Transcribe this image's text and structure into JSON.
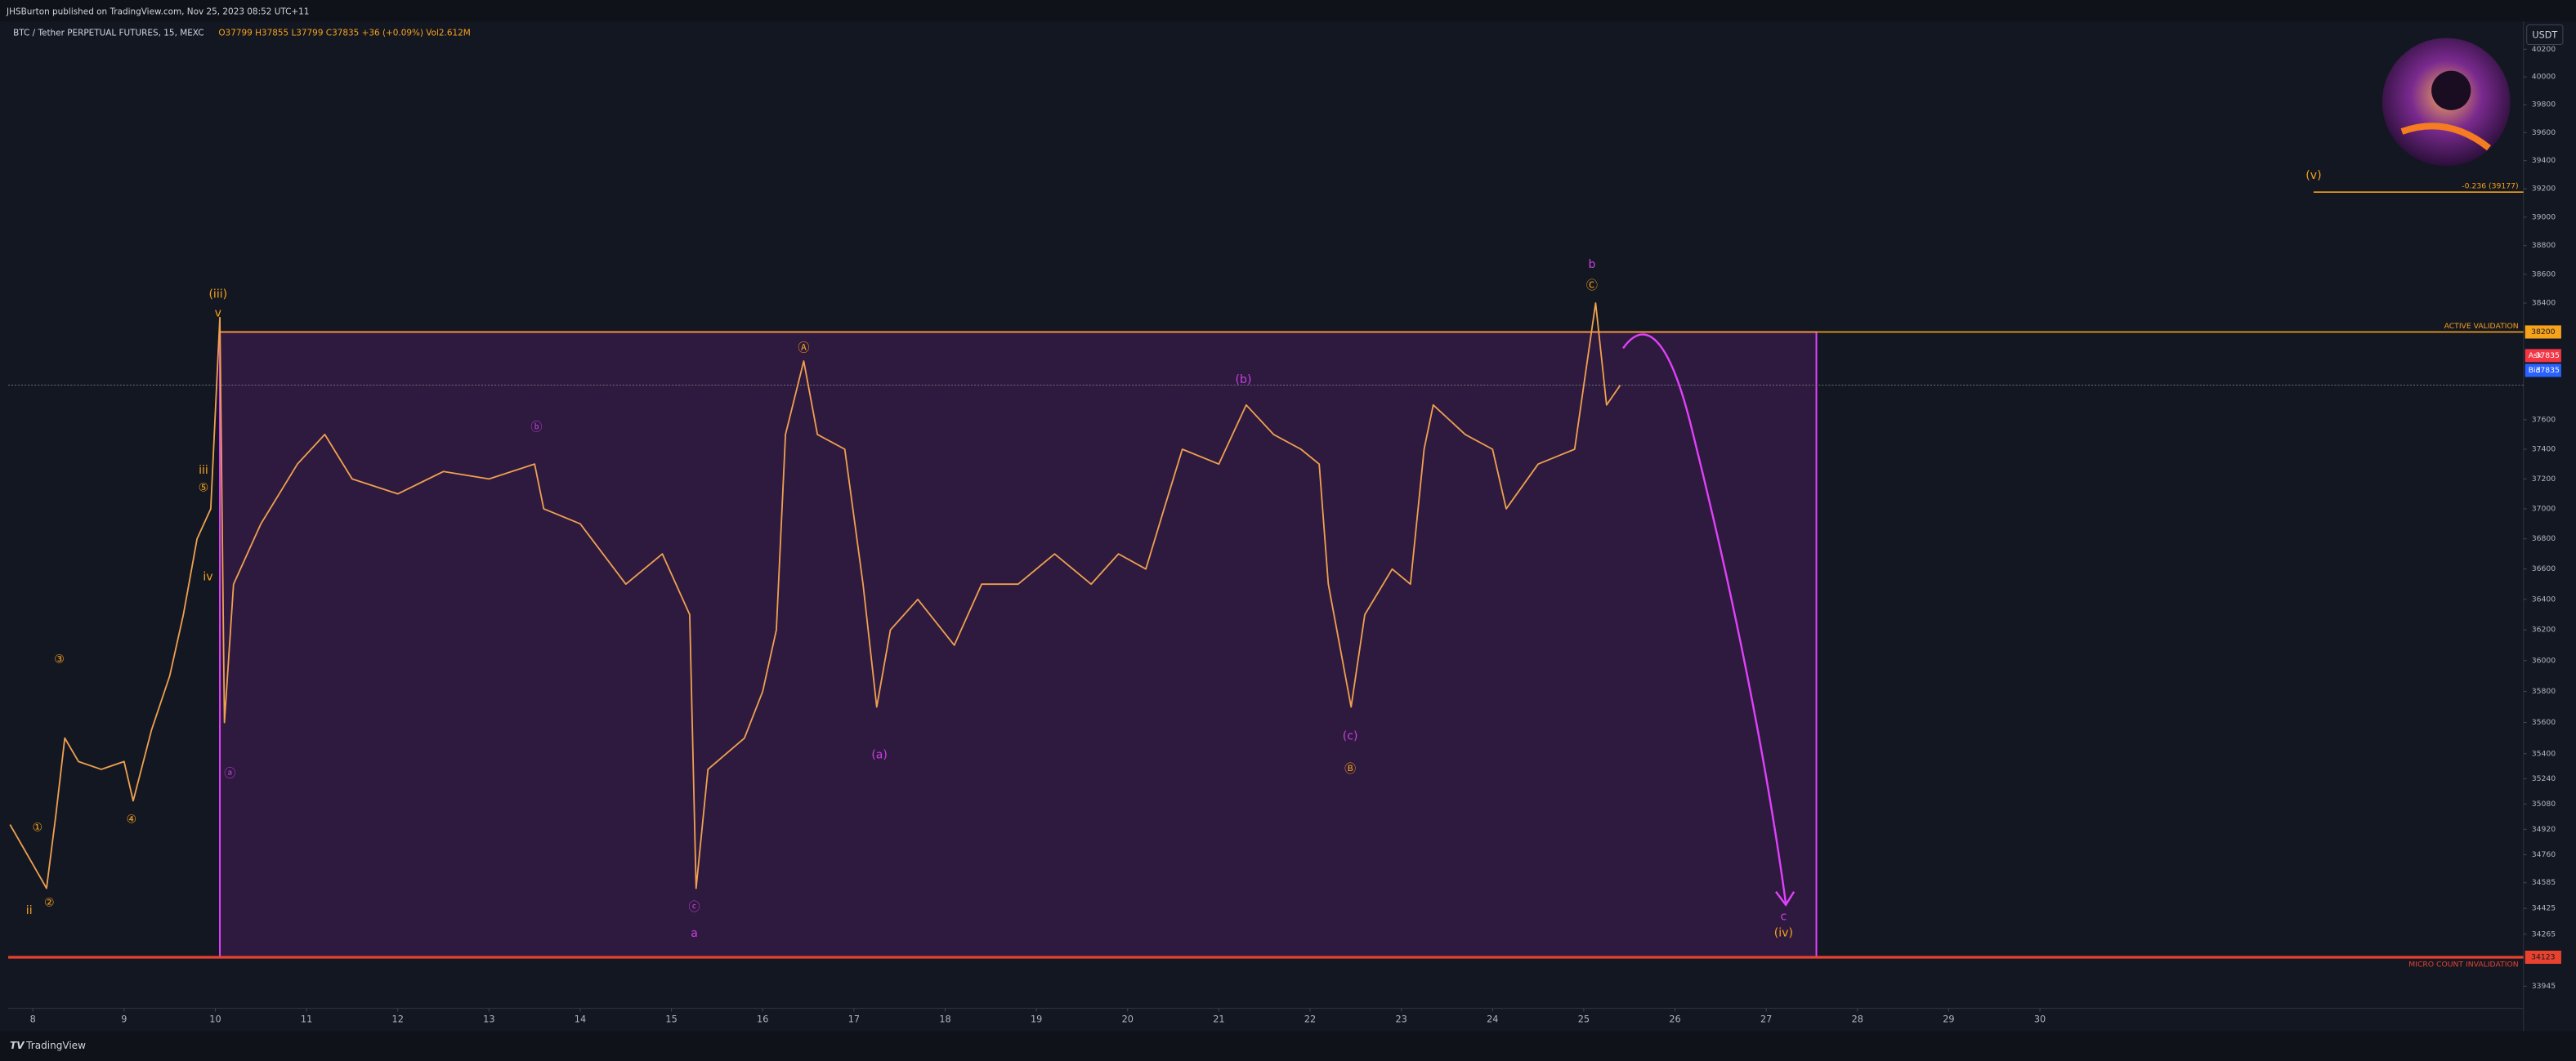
{
  "header": {
    "publisher": "JHSBurton published on TradingView.com, Nov 25, 2023 08:52 UTC+11"
  },
  "footer": {
    "brand": "TradingView"
  },
  "chart_data": {
    "type": "line",
    "symbol": "BTC / Tether PERPETUAL FUTURES, 15, MEXC",
    "ohlc": "O37799 H37855 L37799 C37835 +36 (+0.09%) Vol2.612M",
    "currency": "USDT",
    "color": "#f0a050",
    "log_scale": true,
    "grid": false,
    "xlim": [
      7.73,
      35.3
    ],
    "ylim": [
      33830,
      40390
    ],
    "xticks": [
      8,
      9,
      10,
      11,
      12,
      13,
      14,
      15,
      16,
      17,
      18,
      19,
      20,
      21,
      22,
      23,
      24,
      25,
      26,
      27,
      28,
      29,
      30
    ],
    "yticks": [
      40200,
      40000,
      39800,
      39600,
      39400,
      39200,
      39000,
      38800,
      38600,
      38400,
      37600,
      37400,
      37200,
      37000,
      36800,
      36600,
      36400,
      36200,
      36000,
      35800,
      35600,
      35400,
      35240,
      35080,
      34920,
      34760,
      34585,
      34425,
      34265,
      33945
    ],
    "x": [
      7.75,
      8.0,
      8.15,
      8.25,
      8.35,
      8.5,
      8.75,
      9.0,
      9.1,
      9.3,
      9.5,
      9.65,
      9.8,
      9.95,
      10.05,
      10.1,
      10.2,
      10.5,
      10.9,
      11.2,
      11.5,
      12.0,
      12.5,
      13.0,
      13.5,
      13.6,
      14.0,
      14.5,
      14.9,
      15.2,
      15.27,
      15.4,
      15.8,
      16.0,
      16.15,
      16.25,
      16.45,
      16.6,
      16.9,
      17.1,
      17.25,
      17.4,
      17.7,
      18.1,
      18.4,
      18.8,
      19.2,
      19.6,
      19.9,
      20.2,
      20.4,
      20.6,
      21.0,
      21.3,
      21.6,
      21.9,
      22.1,
      22.2,
      22.45,
      22.6,
      22.9,
      23.1,
      23.25,
      23.35,
      23.7,
      24.0,
      24.15,
      24.5,
      24.9,
      25.05,
      25.13,
      25.25,
      25.4
    ],
    "values": [
      34950,
      34700,
      34550,
      35000,
      35500,
      35350,
      35300,
      35350,
      35100,
      35550,
      35900,
      36300,
      36800,
      37000,
      38300,
      35600,
      36500,
      36900,
      37300,
      37500,
      37200,
      37100,
      37250,
      37200,
      37300,
      37000,
      36900,
      36500,
      36700,
      36300,
      34550,
      35300,
      35500,
      35800,
      36200,
      37500,
      38000,
      37500,
      37400,
      36500,
      35700,
      36200,
      36400,
      36100,
      36500,
      36500,
      36700,
      36500,
      36700,
      36600,
      37000,
      37400,
      37300,
      37700,
      37500,
      37400,
      37300,
      36500,
      35700,
      36300,
      36600,
      36500,
      37400,
      37700,
      37500,
      37400,
      37000,
      37300,
      37400,
      38050,
      38400,
      37700,
      37835
    ],
    "box_x": [
      10.05,
      27.55
    ],
    "levels": [
      {
        "value": 38200,
        "label": "ACTIVE VALIDATION",
        "color": "#f7a21b",
        "from": 10.05
      },
      {
        "value": 34123,
        "label": "MICRO COUNT INVALIDATION",
        "color": "#e8422e"
      },
      {
        "value": 39177,
        "label": "-0.236 (39177)",
        "color": "#f7a21b",
        "from": 33.0
      }
    ],
    "ask": {
      "label": "Ask",
      "value": 37835,
      "color": "#f23645"
    },
    "bid": {
      "label": "Bid",
      "value": 37835,
      "color": "#2962ff"
    },
    "annotations": [
      {
        "text": "(iii)",
        "x": 10.03,
        "y": 38460,
        "color": "#f7a21b"
      },
      {
        "text": "v",
        "x": 10.03,
        "y": 38330,
        "color": "#f7a21b"
      },
      {
        "text": "iii",
        "x": 9.87,
        "y": 37258,
        "color": "#f7a21b"
      },
      {
        "text": "⑤",
        "x": 9.87,
        "y": 37140,
        "color": "#f7a21b"
      },
      {
        "text": "iv",
        "x": 9.92,
        "y": 36547,
        "color": "#f7a21b"
      },
      {
        "text": "③",
        "x": 8.29,
        "y": 36007,
        "color": "#f7a21b"
      },
      {
        "text": "④",
        "x": 9.08,
        "y": 34980,
        "color": "#f7a21b"
      },
      {
        "text": "①",
        "x": 8.05,
        "y": 34930,
        "color": "#f7a21b"
      },
      {
        "text": "②",
        "x": 8.18,
        "y": 34460,
        "color": "#f7a21b"
      },
      {
        "text": "ii",
        "x": 7.96,
        "y": 34410,
        "color": "#f7a21b"
      },
      {
        "text": "Ⓐ",
        "x": 16.45,
        "y": 38087,
        "color": "#f7a21b"
      },
      {
        "text": "Ⓑ",
        "x": 22.44,
        "y": 35300,
        "color": "#f7a21b"
      },
      {
        "text": "Ⓒ",
        "x": 25.09,
        "y": 38520,
        "color": "#f7a21b"
      },
      {
        "text": "(v)",
        "x": 33.0,
        "y": 39293,
        "color": "#f7a21b"
      },
      {
        "text": "(iv)",
        "x": 27.19,
        "y": 34272,
        "color": "#f7a21b"
      },
      {
        "text": "ⓐ",
        "x": 10.16,
        "y": 35270,
        "color": "#c840e0"
      },
      {
        "text": "ⓑ",
        "x": 13.52,
        "y": 37547,
        "color": "#c840e0"
      },
      {
        "text": "ⓒ",
        "x": 15.25,
        "y": 34430,
        "color": "#c840e0"
      },
      {
        "text": "a",
        "x": 15.25,
        "y": 34270,
        "color": "#c840e0"
      },
      {
        "text": "(a)",
        "x": 17.28,
        "y": 35392,
        "color": "#c840e0"
      },
      {
        "text": "(b)",
        "x": 21.27,
        "y": 37872,
        "color": "#c840e0"
      },
      {
        "text": "(c)",
        "x": 22.44,
        "y": 35510,
        "color": "#c840e0"
      },
      {
        "text": "b",
        "x": 25.09,
        "y": 38667,
        "color": "#c840e0"
      },
      {
        "text": "c",
        "x": 27.19,
        "y": 34373,
        "color": "#c840e0"
      }
    ]
  }
}
